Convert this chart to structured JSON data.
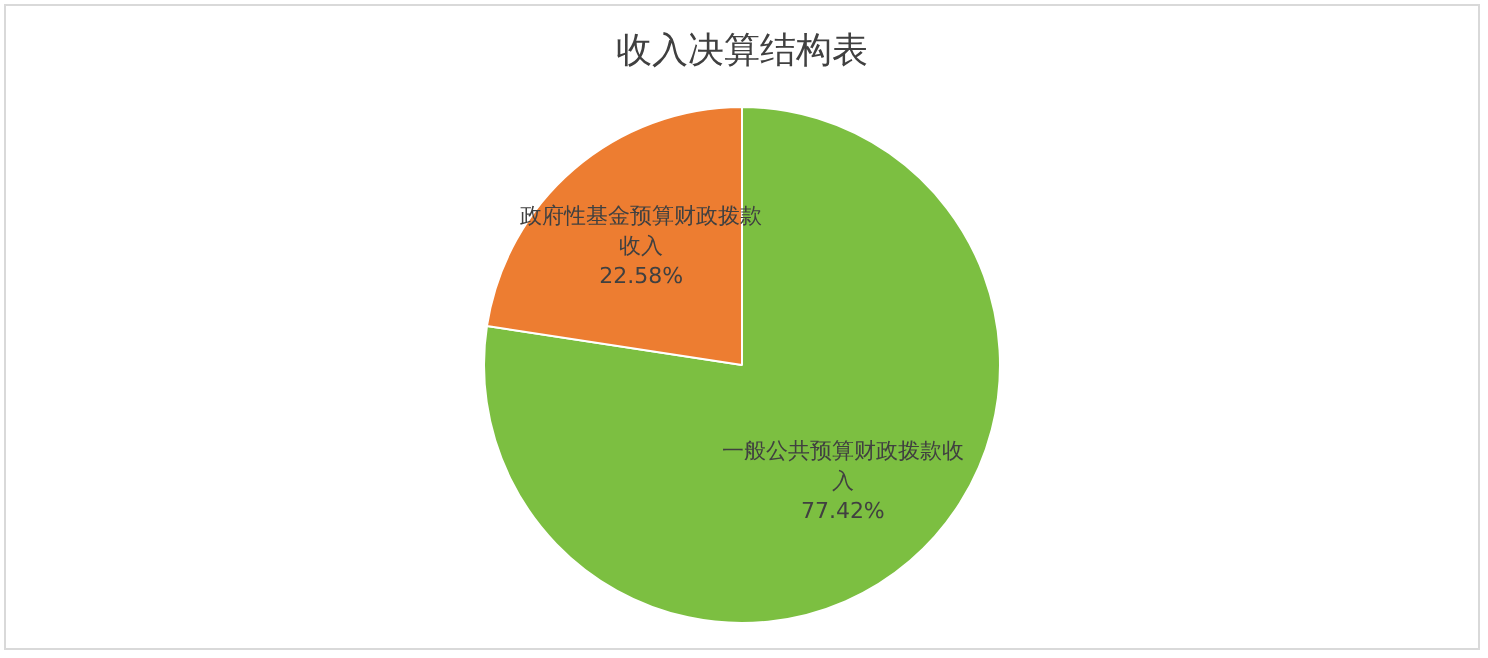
{
  "chart_data": {
    "type": "pie",
    "title": "收入决算结构表",
    "categories": [
      "一般公共预算财政拨款收入",
      "政府性基金预算财政拨款收入"
    ],
    "values": [
      77.42,
      22.58
    ],
    "colors": [
      "#7cbf41",
      "#ed7d31"
    ],
    "value_labels": [
      "77.42%",
      "22.58%"
    ],
    "legend": false
  }
}
